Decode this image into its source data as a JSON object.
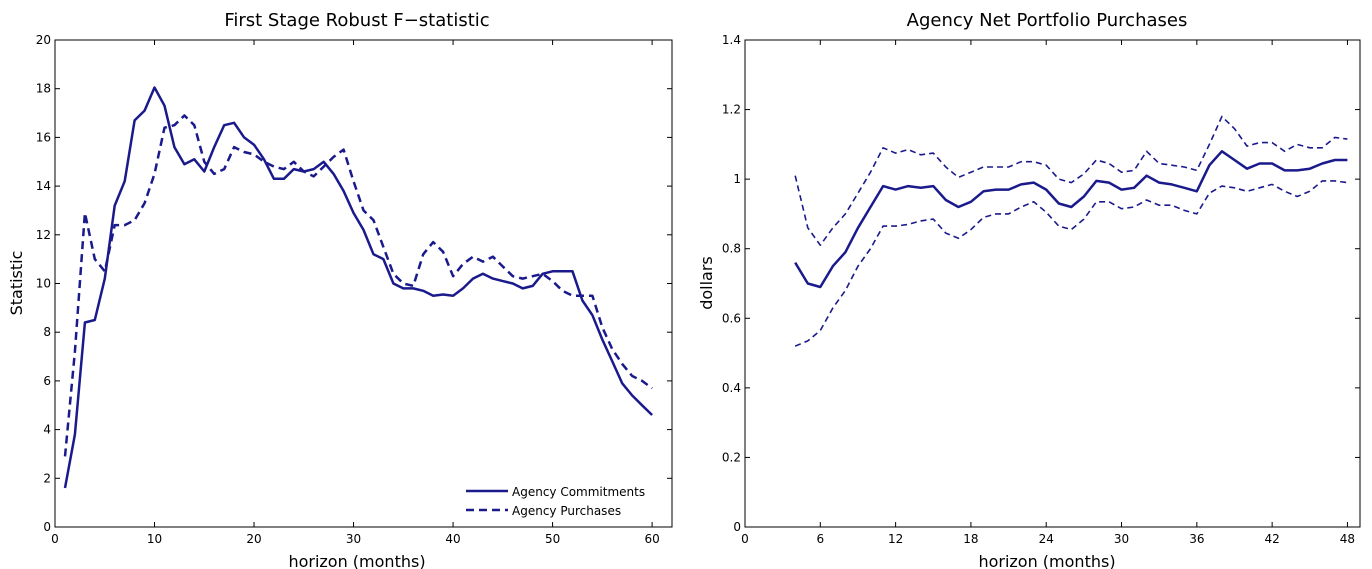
{
  "chart_data": [
    {
      "type": "line",
      "title": "First Stage Robust F−statistic",
      "xlabel": "horizon (months)",
      "ylabel": "Statistic",
      "xlim": [
        0,
        62
      ],
      "ylim": [
        0,
        20
      ],
      "xticks": [
        0,
        10,
        20,
        30,
        40,
        50,
        60
      ],
      "yticks": [
        0,
        2,
        4,
        6,
        8,
        10,
        12,
        14,
        16,
        18,
        20
      ],
      "grid": false,
      "legend_position": "bottom-right",
      "x": [
        1,
        2,
        3,
        4,
        5,
        6,
        7,
        8,
        9,
        10,
        11,
        12,
        13,
        14,
        15,
        16,
        17,
        18,
        19,
        20,
        21,
        22,
        23,
        24,
        25,
        26,
        27,
        28,
        29,
        30,
        31,
        32,
        33,
        34,
        35,
        36,
        37,
        38,
        39,
        40,
        41,
        42,
        43,
        44,
        45,
        46,
        47,
        48,
        49,
        50,
        51,
        52,
        53,
        54,
        55,
        56,
        57,
        58,
        59,
        60
      ],
      "series": [
        {
          "name": "Agency Commitments",
          "style": "solid",
          "color": "#1a1a8c",
          "values": [
            1.6,
            3.8,
            8.4,
            8.5,
            10.2,
            13.2,
            14.2,
            16.7,
            17.1,
            18.05,
            17.3,
            15.6,
            14.9,
            15.1,
            14.6,
            15.6,
            16.5,
            16.6,
            16.0,
            15.7,
            15.1,
            14.3,
            14.3,
            14.7,
            14.6,
            14.7,
            15.0,
            14.5,
            13.8,
            12.9,
            12.2,
            11.2,
            11.0,
            10.0,
            9.8,
            9.8,
            9.7,
            9.5,
            9.55,
            9.5,
            9.8,
            10.2,
            10.4,
            10.2,
            10.1,
            10.0,
            9.8,
            9.9,
            10.4,
            10.5,
            10.5,
            10.5,
            9.3,
            8.7,
            7.7,
            6.8,
            5.9,
            5.4,
            5.0,
            4.6
          ]
        },
        {
          "name": "Agency Purchases",
          "style": "dashed",
          "color": "#1a1a8c",
          "values": [
            2.9,
            7.2,
            12.9,
            11.0,
            10.5,
            12.4,
            12.4,
            12.6,
            13.3,
            14.5,
            16.4,
            16.5,
            16.9,
            16.5,
            15.0,
            14.5,
            14.7,
            15.6,
            15.4,
            15.3,
            15.0,
            14.8,
            14.7,
            15.0,
            14.6,
            14.4,
            14.8,
            15.2,
            15.5,
            14.2,
            13.0,
            12.6,
            11.5,
            10.4,
            10.0,
            9.9,
            11.2,
            11.7,
            11.3,
            10.3,
            10.8,
            11.1,
            10.9,
            11.1,
            10.7,
            10.3,
            10.2,
            10.3,
            10.4,
            10.1,
            9.7,
            9.5,
            9.5,
            9.5,
            8.2,
            7.3,
            6.7,
            6.2,
            6.0,
            5.7
          ]
        }
      ]
    },
    {
      "type": "line",
      "title": "Agency Net Portfolio Purchases",
      "xlabel": "horizon (months)",
      "ylabel": "dollars",
      "xlim": [
        0,
        49
      ],
      "ylim": [
        0,
        1.4
      ],
      "xticks": [
        0,
        6,
        12,
        18,
        24,
        30,
        36,
        42,
        48
      ],
      "yticks": [
        0,
        0.2,
        0.4,
        0.6,
        0.8,
        1,
        1.2,
        1.4
      ],
      "grid": false,
      "x": [
        4,
        5,
        6,
        7,
        8,
        9,
        10,
        11,
        12,
        13,
        14,
        15,
        16,
        17,
        18,
        19,
        20,
        21,
        22,
        23,
        24,
        25,
        26,
        27,
        28,
        29,
        30,
        31,
        32,
        33,
        34,
        35,
        36,
        37,
        38,
        39,
        40,
        41,
        42,
        43,
        44,
        45,
        46,
        47,
        48
      ],
      "series": [
        {
          "role": "estimate",
          "style": "solid",
          "color": "#1a1a8c",
          "values": [
            0.76,
            0.7,
            0.69,
            0.75,
            0.79,
            0.86,
            0.92,
            0.98,
            0.97,
            0.98,
            0.975,
            0.98,
            0.94,
            0.92,
            0.935,
            0.965,
            0.97,
            0.97,
            0.985,
            0.99,
            0.97,
            0.93,
            0.92,
            0.95,
            0.995,
            0.99,
            0.97,
            0.975,
            1.01,
            0.99,
            0.985,
            0.975,
            0.965,
            1.04,
            1.08,
            1.055,
            1.03,
            1.045,
            1.045,
            1.025,
            1.025,
            1.03,
            1.045,
            1.055,
            1.055
          ]
        },
        {
          "role": "upper band",
          "style": "dashed",
          "color": "#1a1a8c",
          "values": [
            1.01,
            0.86,
            0.81,
            0.86,
            0.9,
            0.96,
            1.02,
            1.09,
            1.075,
            1.085,
            1.07,
            1.075,
            1.035,
            1.005,
            1.02,
            1.035,
            1.035,
            1.035,
            1.05,
            1.05,
            1.04,
            1.0,
            0.99,
            1.015,
            1.055,
            1.045,
            1.02,
            1.025,
            1.08,
            1.045,
            1.04,
            1.035,
            1.025,
            1.1,
            1.18,
            1.145,
            1.095,
            1.105,
            1.105,
            1.08,
            1.1,
            1.09,
            1.09,
            1.12,
            1.115
          ]
        },
        {
          "role": "lower band",
          "style": "dashed",
          "color": "#1a1a8c",
          "values": [
            0.52,
            0.535,
            0.565,
            0.63,
            0.68,
            0.75,
            0.8,
            0.865,
            0.865,
            0.87,
            0.88,
            0.885,
            0.845,
            0.83,
            0.855,
            0.89,
            0.9,
            0.9,
            0.92,
            0.935,
            0.905,
            0.865,
            0.855,
            0.885,
            0.935,
            0.935,
            0.915,
            0.92,
            0.94,
            0.925,
            0.925,
            0.91,
            0.9,
            0.96,
            0.98,
            0.975,
            0.965,
            0.975,
            0.985,
            0.965,
            0.95,
            0.965,
            0.995,
            0.995,
            0.99
          ]
        }
      ]
    }
  ]
}
